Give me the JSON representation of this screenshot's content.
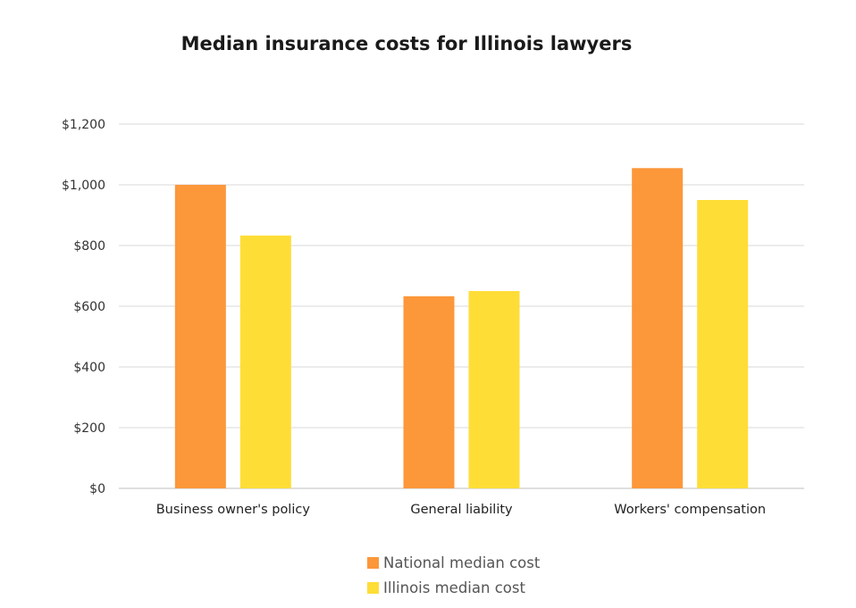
{
  "chart_data": {
    "type": "bar",
    "title": "Median insurance costs for Illinois lawyers",
    "xlabel": "",
    "ylabel": "",
    "categories": [
      "Business owner's policy",
      "General liability",
      "Workers' compensation"
    ],
    "series": [
      {
        "name": "National median cost",
        "color": "#fc973a",
        "values": [
          1000,
          633,
          1055
        ]
      },
      {
        "name": "Illinois median cost",
        "color": "#ffdd37",
        "values": [
          833,
          650,
          950
        ]
      }
    ],
    "ylim": [
      0,
      1200
    ],
    "yticks": [
      0,
      200,
      400,
      600,
      800,
      1000,
      1200
    ],
    "ytick_labels": [
      "$0",
      "$200",
      "$400",
      "$600",
      "$800",
      "$1,000",
      "$1,200"
    ],
    "grid": true,
    "legend_position": "bottom"
  }
}
